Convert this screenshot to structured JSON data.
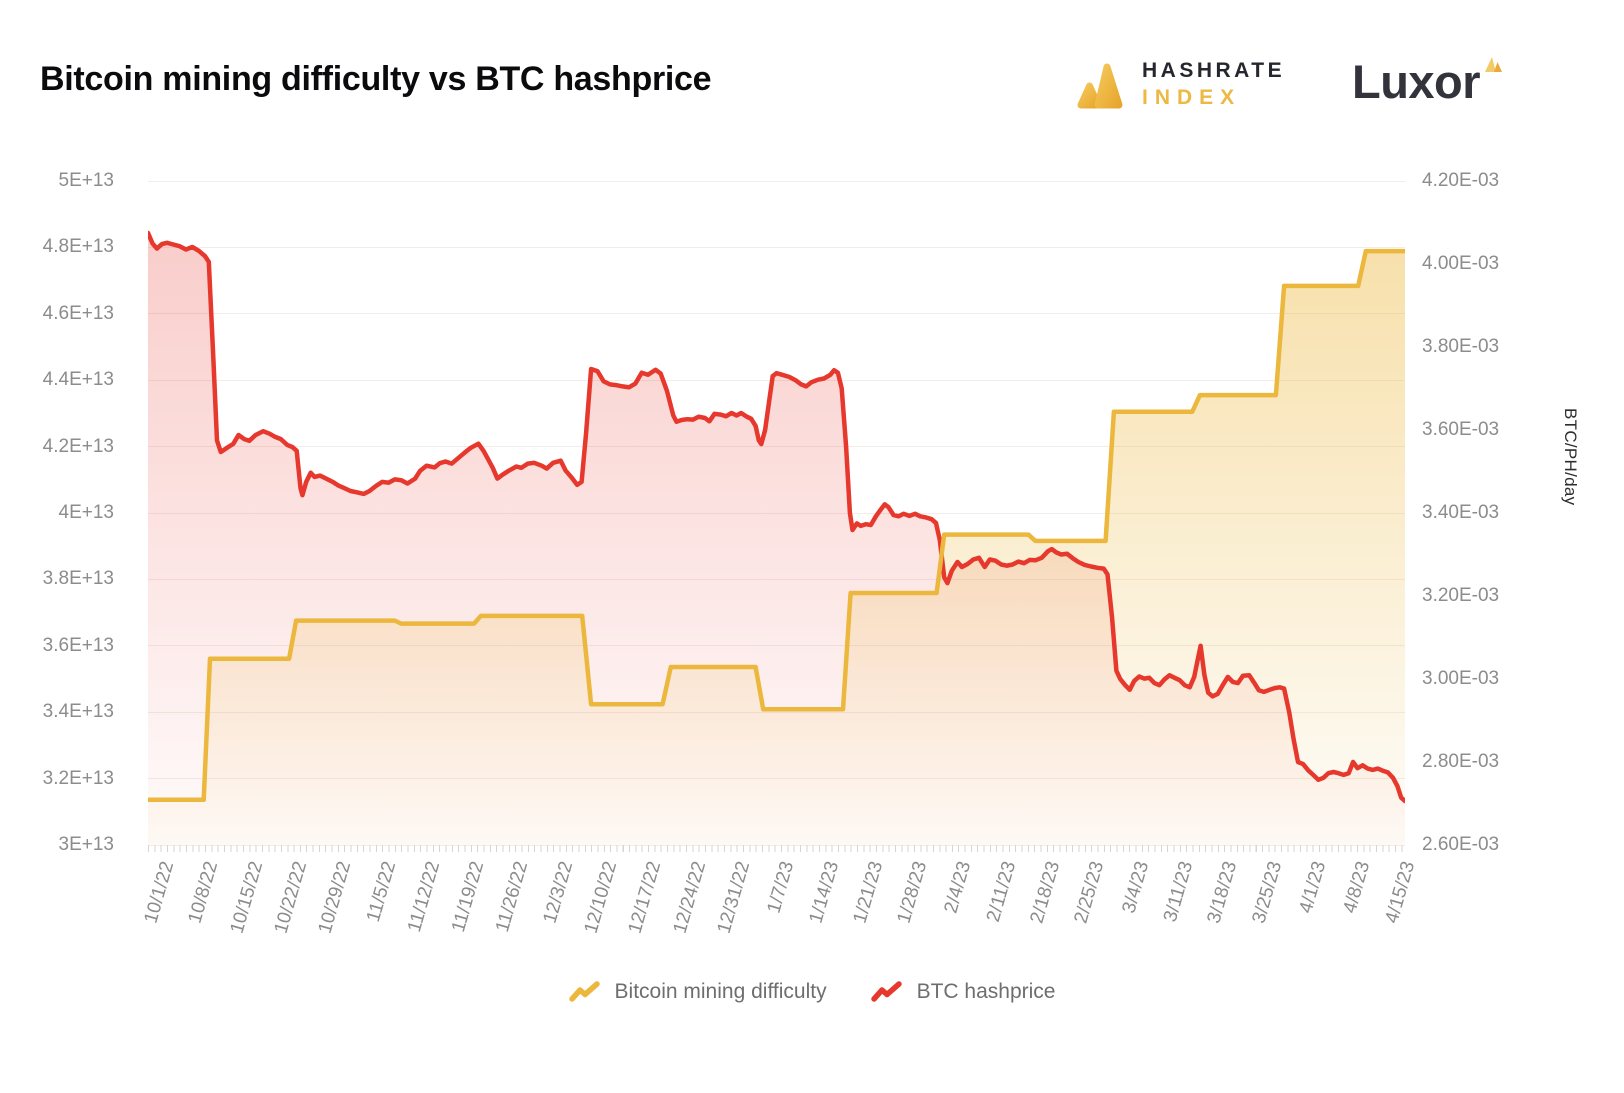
{
  "title": "Bitcoin mining difficulty vs BTC hashprice",
  "branding": {
    "hashrate_line1": "HASHRATE",
    "hashrate_line2": "INDEX",
    "luxor": "Luxor",
    "brand_yellow": "#EDB843",
    "brand_dark": "#26262e"
  },
  "legend": {
    "items": [
      {
        "label": "Bitcoin mining difficulty",
        "color": "#ECB73D"
      },
      {
        "label": "BTC hashprice",
        "color": "#E6382D"
      }
    ]
  },
  "chart_data": {
    "type": "line",
    "title": "Bitcoin mining difficulty vs BTC hashprice",
    "grid": true,
    "legend_position": "bottom",
    "x_axis": {
      "total_days": 198.6,
      "tick_labels": [
        "10/1/22",
        "10/8/22",
        "10/15/22",
        "10/22/22",
        "10/29/22",
        "11/5/22",
        "11/12/22",
        "11/19/22",
        "11/26/22",
        "12/3/22",
        "12/10/22",
        "12/17/22",
        "12/24/22",
        "12/31/22",
        "1/7/23",
        "1/14/23",
        "1/21/23",
        "1/28/23",
        "2/4/23",
        "2/11/23",
        "2/18/23",
        "2/25/23",
        "3/4/23",
        "3/11/23",
        "3/18/23",
        "3/25/23",
        "4/1/23",
        "4/8/23",
        "4/15/23"
      ],
      "tick_label_days": [
        0,
        7,
        14,
        21,
        28,
        35,
        42,
        49,
        56,
        63,
        70,
        77,
        84,
        91,
        98,
        105,
        112,
        119,
        126,
        133,
        140,
        147,
        154,
        161,
        168,
        175,
        182,
        189,
        196
      ]
    },
    "left_axis": {
      "unit": "E+13",
      "min": 3,
      "max": 5,
      "ticks": [
        "5E+13",
        "4.8E+13",
        "4.6E+13",
        "4.4E+13",
        "4.2E+13",
        "4E+13",
        "3.8E+13",
        "3.6E+13",
        "3.4E+13",
        "3.2E+13",
        "3E+13"
      ]
    },
    "right_axis": {
      "unit": "E-03",
      "title": "BTC/PH/day",
      "min": 2.6,
      "max": 4.2,
      "ticks": [
        "4.20E-03",
        "4.00E-03",
        "3.80E-03",
        "3.60E-03",
        "3.40E-03",
        "3.20E-03",
        "3.00E-03",
        "2.80E-03",
        "2.60E-03"
      ]
    },
    "series": [
      {
        "name": "Bitcoin mining difficulty",
        "axis": "left",
        "color": "#ECB73D",
        "fill_alpha_top": 0.43,
        "fill_alpha_bottom": 0.03,
        "value_scale_note": "values are difficulty in units of 1E+13",
        "points": [
          [
            0,
            3.136
          ],
          [
            8.8,
            3.136
          ],
          [
            9.8,
            3.561
          ],
          [
            22.3,
            3.561
          ],
          [
            23.4,
            3.676
          ],
          [
            39,
            3.676
          ],
          [
            40,
            3.667
          ],
          [
            51.5,
            3.667
          ],
          [
            52.6,
            3.69
          ],
          [
            68.6,
            3.69
          ],
          [
            70,
            3.424
          ],
          [
            81.3,
            3.424
          ],
          [
            82.6,
            3.536
          ],
          [
            96,
            3.536
          ],
          [
            97.2,
            3.409
          ],
          [
            109.8,
            3.409
          ],
          [
            111,
            3.759
          ],
          [
            124.6,
            3.759
          ],
          [
            125.8,
            3.935
          ],
          [
            139.1,
            3.935
          ],
          [
            140.2,
            3.916
          ],
          [
            151.3,
            3.916
          ],
          [
            152.6,
            4.305
          ],
          [
            165,
            4.305
          ],
          [
            166.2,
            4.355
          ],
          [
            178.2,
            4.355
          ],
          [
            179.5,
            4.684
          ],
          [
            191.2,
            4.684
          ],
          [
            192.4,
            4.789
          ],
          [
            198.6,
            4.789
          ]
        ]
      },
      {
        "name": "BTC hashprice",
        "axis": "right",
        "color": "#E6382D",
        "fill_alpha_top": 0.25,
        "fill_alpha_bottom": 0.02,
        "value_scale_note": "values are hashprice in units of 1E-03 BTC/PH/day",
        "points": [
          [
            0,
            4.075
          ],
          [
            0.7,
            4.05
          ],
          [
            1.4,
            4.037
          ],
          [
            2.2,
            4.048
          ],
          [
            3,
            4.051
          ],
          [
            4,
            4.047
          ],
          [
            5,
            4.043
          ],
          [
            6,
            4.035
          ],
          [
            7,
            4.041
          ],
          [
            8,
            4.032
          ],
          [
            9,
            4.019
          ],
          [
            9.6,
            4.005
          ],
          [
            10.3,
            3.78
          ],
          [
            10.9,
            3.575
          ],
          [
            11.5,
            3.547
          ],
          [
            12.5,
            3.557
          ],
          [
            13.5,
            3.567
          ],
          [
            14.3,
            3.588
          ],
          [
            15.2,
            3.578
          ],
          [
            16,
            3.574
          ],
          [
            17,
            3.588
          ],
          [
            18.2,
            3.597
          ],
          [
            19.2,
            3.591
          ],
          [
            20,
            3.584
          ],
          [
            21,
            3.578
          ],
          [
            22,
            3.564
          ],
          [
            22.8,
            3.559
          ],
          [
            23.5,
            3.55
          ],
          [
            24.1,
            3.46
          ],
          [
            24.4,
            3.443
          ],
          [
            25,
            3.475
          ],
          [
            25.7,
            3.497
          ],
          [
            26.3,
            3.487
          ],
          [
            27.2,
            3.49
          ],
          [
            28.5,
            3.48
          ],
          [
            29.3,
            3.474
          ],
          [
            30.1,
            3.466
          ],
          [
            31,
            3.46
          ],
          [
            32,
            3.453
          ],
          [
            33,
            3.45
          ],
          [
            34.1,
            3.446
          ],
          [
            35,
            3.453
          ],
          [
            36,
            3.465
          ],
          [
            37,
            3.475
          ],
          [
            38,
            3.473
          ],
          [
            39,
            3.481
          ],
          [
            40,
            3.479
          ],
          [
            41,
            3.471
          ],
          [
            42.2,
            3.483
          ],
          [
            43,
            3.502
          ],
          [
            44,
            3.514
          ],
          [
            45.3,
            3.51
          ],
          [
            46.1,
            3.52
          ],
          [
            47,
            3.524
          ],
          [
            48,
            3.519
          ],
          [
            49,
            3.532
          ],
          [
            50,
            3.545
          ],
          [
            51,
            3.557
          ],
          [
            52.2,
            3.567
          ],
          [
            53,
            3.55
          ],
          [
            53.8,
            3.528
          ],
          [
            54.5,
            3.508
          ],
          [
            55.2,
            3.483
          ],
          [
            56,
            3.492
          ],
          [
            57,
            3.502
          ],
          [
            58.2,
            3.512
          ],
          [
            59,
            3.509
          ],
          [
            60,
            3.519
          ],
          [
            61,
            3.521
          ],
          [
            62.2,
            3.514
          ],
          [
            63,
            3.507
          ],
          [
            64,
            3.521
          ],
          [
            65.2,
            3.526
          ],
          [
            66,
            3.502
          ],
          [
            67,
            3.484
          ],
          [
            67.8,
            3.468
          ],
          [
            68.5,
            3.475
          ],
          [
            69.2,
            3.59
          ],
          [
            70,
            3.747
          ],
          [
            71,
            3.742
          ],
          [
            72,
            3.717
          ],
          [
            73,
            3.71
          ],
          [
            74,
            3.708
          ],
          [
            75,
            3.705
          ],
          [
            76,
            3.703
          ],
          [
            77,
            3.712
          ],
          [
            78,
            3.738
          ],
          [
            79,
            3.733
          ],
          [
            80.2,
            3.745
          ],
          [
            81,
            3.736
          ],
          [
            82,
            3.694
          ],
          [
            83,
            3.635
          ],
          [
            83.5,
            3.62
          ],
          [
            84.3,
            3.624
          ],
          [
            85.2,
            3.626
          ],
          [
            86.1,
            3.625
          ],
          [
            87,
            3.632
          ],
          [
            88,
            3.629
          ],
          [
            88.7,
            3.621
          ],
          [
            89.5,
            3.639
          ],
          [
            90.5,
            3.637
          ],
          [
            91.3,
            3.633
          ],
          [
            92.2,
            3.641
          ],
          [
            93,
            3.635
          ],
          [
            93.7,
            3.641
          ],
          [
            94.5,
            3.633
          ],
          [
            95.3,
            3.627
          ],
          [
            96,
            3.61
          ],
          [
            96.5,
            3.575
          ],
          [
            96.9,
            3.566
          ],
          [
            97.5,
            3.6
          ],
          [
            98.1,
            3.665
          ],
          [
            98.7,
            3.73
          ],
          [
            99.3,
            3.737
          ],
          [
            100.2,
            3.733
          ],
          [
            101.3,
            3.728
          ],
          [
            102.3,
            3.72
          ],
          [
            103.2,
            3.71
          ],
          [
            104,
            3.705
          ],
          [
            104.8,
            3.715
          ],
          [
            105.8,
            3.721
          ],
          [
            106.8,
            3.724
          ],
          [
            107.8,
            3.733
          ],
          [
            108.4,
            3.744
          ],
          [
            109,
            3.738
          ],
          [
            109.6,
            3.7
          ],
          [
            110.3,
            3.56
          ],
          [
            110.9,
            3.4
          ],
          [
            111.3,
            3.359
          ],
          [
            112,
            3.375
          ],
          [
            112.6,
            3.369
          ],
          [
            113.4,
            3.373
          ],
          [
            114.2,
            3.371
          ],
          [
            115,
            3.392
          ],
          [
            115.8,
            3.409
          ],
          [
            116.4,
            3.421
          ],
          [
            117,
            3.414
          ],
          [
            117.8,
            3.395
          ],
          [
            118.6,
            3.392
          ],
          [
            119.4,
            3.398
          ],
          [
            120.3,
            3.393
          ],
          [
            121.2,
            3.398
          ],
          [
            122,
            3.392
          ],
          [
            123,
            3.389
          ],
          [
            123.8,
            3.385
          ],
          [
            124.5,
            3.376
          ],
          [
            125.1,
            3.335
          ],
          [
            125.8,
            3.245
          ],
          [
            126.3,
            3.231
          ],
          [
            127,
            3.261
          ],
          [
            127.9,
            3.282
          ],
          [
            128.6,
            3.27
          ],
          [
            129.5,
            3.277
          ],
          [
            130.4,
            3.288
          ],
          [
            131.3,
            3.292
          ],
          [
            132.2,
            3.27
          ],
          [
            133,
            3.288
          ],
          [
            133.9,
            3.285
          ],
          [
            134.8,
            3.276
          ],
          [
            135.7,
            3.273
          ],
          [
            136.6,
            3.276
          ],
          [
            137.5,
            3.283
          ],
          [
            138.4,
            3.279
          ],
          [
            139.3,
            3.287
          ],
          [
            140.2,
            3.286
          ],
          [
            141.2,
            3.292
          ],
          [
            142.2,
            3.308
          ],
          [
            142.8,
            3.313
          ],
          [
            143.5,
            3.305
          ],
          [
            144.3,
            3.3
          ],
          [
            145.2,
            3.302
          ],
          [
            146.1,
            3.291
          ],
          [
            147,
            3.282
          ],
          [
            148,
            3.275
          ],
          [
            149,
            3.271
          ],
          [
            150,
            3.268
          ],
          [
            151,
            3.266
          ],
          [
            151.6,
            3.252
          ],
          [
            152.3,
            3.15
          ],
          [
            153,
            3.02
          ],
          [
            153.6,
            3.0
          ],
          [
            154.4,
            2.985
          ],
          [
            155.1,
            2.974
          ],
          [
            155.8,
            2.995
          ],
          [
            156.6,
            3.006
          ],
          [
            157.4,
            3.001
          ],
          [
            158.2,
            3.003
          ],
          [
            159,
            2.99
          ],
          [
            159.8,
            2.985
          ],
          [
            160.6,
            2.999
          ],
          [
            161.4,
            3.009
          ],
          [
            162.2,
            3.003
          ],
          [
            163,
            2.997
          ],
          [
            163.8,
            2.985
          ],
          [
            164.6,
            2.98
          ],
          [
            165.3,
            3.005
          ],
          [
            165.9,
            3.05
          ],
          [
            166.3,
            3.08
          ],
          [
            166.9,
            3.01
          ],
          [
            167.5,
            2.967
          ],
          [
            168.2,
            2.958
          ],
          [
            169,
            2.964
          ],
          [
            169.8,
            2.985
          ],
          [
            170.6,
            3.005
          ],
          [
            171.4,
            2.993
          ],
          [
            172.2,
            2.99
          ],
          [
            173,
            3.008
          ],
          [
            174,
            3.009
          ],
          [
            174.8,
            2.99
          ],
          [
            175.5,
            2.973
          ],
          [
            176.3,
            2.969
          ],
          [
            177.2,
            2.974
          ],
          [
            178,
            2.978
          ],
          [
            178.8,
            2.98
          ],
          [
            179.5,
            2.977
          ],
          [
            180.3,
            2.92
          ],
          [
            181,
            2.855
          ],
          [
            181.7,
            2.8
          ],
          [
            182.5,
            2.795
          ],
          [
            183.3,
            2.78
          ],
          [
            184.1,
            2.769
          ],
          [
            184.9,
            2.757
          ],
          [
            185.7,
            2.762
          ],
          [
            186.5,
            2.773
          ],
          [
            187.3,
            2.776
          ],
          [
            188.1,
            2.773
          ],
          [
            188.9,
            2.769
          ],
          [
            189.7,
            2.773
          ],
          [
            190.4,
            2.8
          ],
          [
            191.1,
            2.785
          ],
          [
            191.9,
            2.792
          ],
          [
            192.7,
            2.784
          ],
          [
            193.5,
            2.781
          ],
          [
            194.3,
            2.784
          ],
          [
            195.1,
            2.779
          ],
          [
            195.9,
            2.775
          ],
          [
            196.7,
            2.762
          ],
          [
            197.4,
            2.742
          ],
          [
            198,
            2.714
          ],
          [
            198.6,
            2.706
          ]
        ]
      }
    ]
  }
}
